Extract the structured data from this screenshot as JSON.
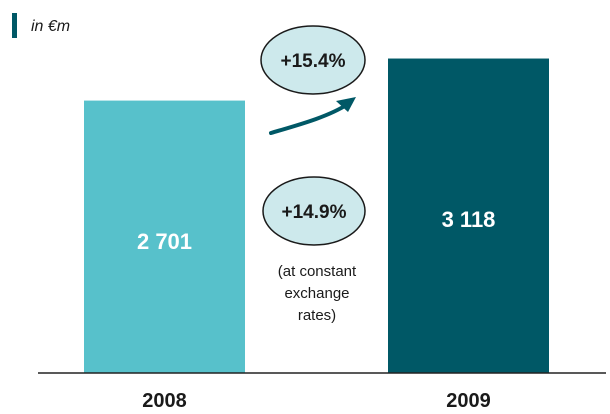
{
  "chart_data": {
    "type": "bar",
    "unit": "in €m",
    "categories": [
      "2008",
      "2009"
    ],
    "values": [
      2701,
      3118
    ],
    "value_labels": [
      "2 701",
      "3 118"
    ],
    "colors": [
      "#57c1cb",
      "#005866"
    ],
    "ylim": [
      0,
      3500
    ],
    "grid": false,
    "annotations": {
      "growth_reported": "+15.4%",
      "growth_constant": "+14.9%",
      "constant_note": [
        "(at constant",
        "exchange",
        "rates)"
      ]
    }
  },
  "colors": {
    "unit_marker": "#005866",
    "bubble_fill": "#cde9ec",
    "bubble_stroke": "#1a1a1a",
    "arrow": "#005866"
  }
}
